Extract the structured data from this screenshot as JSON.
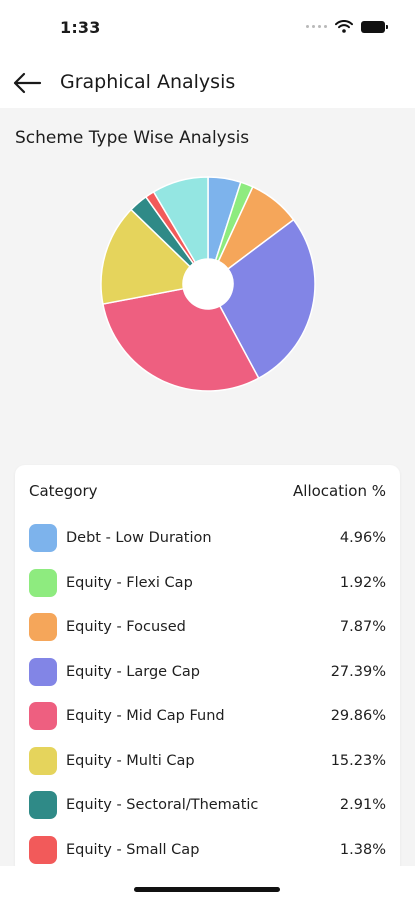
{
  "status_bar": {
    "time": "1:33"
  },
  "header": {
    "title": "Graphical Analysis",
    "back_icon": "arrow-left-icon"
  },
  "section": {
    "title": "Scheme Type Wise Analysis"
  },
  "table": {
    "col_category": "Category",
    "col_allocation": "Allocation %",
    "rows": [
      {
        "label": "Debt - Low Duration",
        "value": "4.96%",
        "color": "#7db3ec"
      },
      {
        "label": "Equity - Flexi Cap",
        "value": "1.92%",
        "color": "#8eeb7f"
      },
      {
        "label": "Equity - Focused",
        "value": "7.87%",
        "color": "#f5a65a"
      },
      {
        "label": "Equity - Large Cap",
        "value": "27.39%",
        "color": "#8285e6"
      },
      {
        "label": "Equity - Mid Cap Fund",
        "value": "29.86%",
        "color": "#ee5f80"
      },
      {
        "label": "Equity - Multi Cap",
        "value": "15.23%",
        "color": "#e5d45c"
      },
      {
        "label": "Equity - Sectoral/Thematic",
        "value": "2.91%",
        "color": "#2f8a87"
      },
      {
        "label": "Equity - Small Cap",
        "value": "1.38%",
        "color": "#f25a5a"
      }
    ]
  },
  "chart_data": {
    "type": "pie",
    "donut": true,
    "categories": [
      "Debt - Low Duration",
      "Equity - Flexi Cap",
      "Equity - Focused",
      "Equity - Large Cap",
      "Equity - Mid Cap Fund",
      "Equity - Multi Cap",
      "Equity - Sectoral/Thematic",
      "Equity - Small Cap",
      ""
    ],
    "values": [
      4.96,
      1.92,
      7.87,
      27.39,
      29.86,
      15.23,
      2.91,
      1.38,
      8.48
    ],
    "colors": [
      "#7db3ec",
      "#8eeb7f",
      "#f5a65a",
      "#8285e6",
      "#ee5f80",
      "#e5d45c",
      "#2f8a87",
      "#f25a5a",
      "#94e6e2"
    ]
  }
}
